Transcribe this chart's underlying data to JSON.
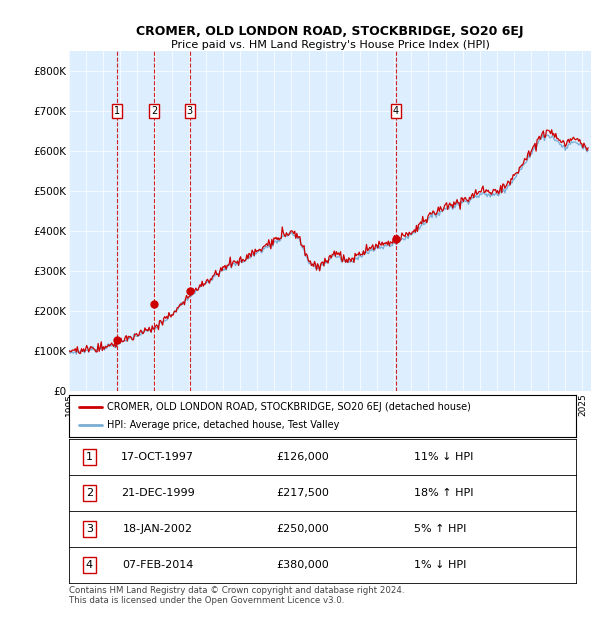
{
  "title": "CROMER, OLD LONDON ROAD, STOCKBRIDGE, SO20 6EJ",
  "subtitle": "Price paid vs. HM Land Registry's House Price Index (HPI)",
  "legend_line1": "CROMER, OLD LONDON ROAD, STOCKBRIDGE, SO20 6EJ (detached house)",
  "legend_line2": "HPI: Average price, detached house, Test Valley",
  "footnote": "Contains HM Land Registry data © Crown copyright and database right 2024.\nThis data is licensed under the Open Government Licence v3.0.",
  "transactions": [
    {
      "num": 1,
      "date": "17-OCT-1997",
      "price": 126000,
      "pct": "11%",
      "dir": "↓",
      "year_x": 1997.79
    },
    {
      "num": 2,
      "date": "21-DEC-1999",
      "price": 217500,
      "pct": "18%",
      "dir": "↑",
      "year_x": 1999.97
    },
    {
      "num": 3,
      "date": "18-JAN-2002",
      "price": 250000,
      "pct": "5%",
      "dir": "↑",
      "year_x": 2002.05
    },
    {
      "num": 4,
      "date": "07-FEB-2014",
      "price": 380000,
      "pct": "1%",
      "dir": "↓",
      "year_x": 2014.1
    }
  ],
  "hpi_color": "#7aadd4",
  "price_color": "#cc0000",
  "marker_color": "#cc0000",
  "vline_color": "#cc0000",
  "bg_color": "#ddeeff",
  "plot_bg": "#ffffff",
  "ylim": [
    0,
    850000
  ],
  "yticks": [
    0,
    100000,
    200000,
    300000,
    400000,
    500000,
    600000,
    700000,
    800000
  ],
  "ytick_labels": [
    "£0",
    "£100K",
    "£200K",
    "£300K",
    "£400K",
    "£500K",
    "£600K",
    "£700K",
    "£800K"
  ],
  "xmin": 1995.0,
  "xmax": 2025.5,
  "keypoints": [
    [
      1995.0,
      95000
    ],
    [
      1996.0,
      100000
    ],
    [
      1997.0,
      108000
    ],
    [
      1997.8,
      115000
    ],
    [
      1998.5,
      130000
    ],
    [
      1999.0,
      140000
    ],
    [
      1999.97,
      155000
    ],
    [
      2000.5,
      170000
    ],
    [
      2001.0,
      190000
    ],
    [
      2002.05,
      235000
    ],
    [
      2003.0,
      270000
    ],
    [
      2004.0,
      305000
    ],
    [
      2005.0,
      320000
    ],
    [
      2006.0,
      345000
    ],
    [
      2007.0,
      370000
    ],
    [
      2007.5,
      385000
    ],
    [
      2008.0,
      395000
    ],
    [
      2008.5,
      375000
    ],
    [
      2009.0,
      320000
    ],
    [
      2009.5,
      305000
    ],
    [
      2010.0,
      320000
    ],
    [
      2010.5,
      340000
    ],
    [
      2011.0,
      325000
    ],
    [
      2011.5,
      320000
    ],
    [
      2012.0,
      340000
    ],
    [
      2013.0,
      355000
    ],
    [
      2014.1,
      370000
    ],
    [
      2015.0,
      390000
    ],
    [
      2016.0,
      430000
    ],
    [
      2017.0,
      455000
    ],
    [
      2018.0,
      470000
    ],
    [
      2019.0,
      490000
    ],
    [
      2020.0,
      490000
    ],
    [
      2020.5,
      505000
    ],
    [
      2021.0,
      530000
    ],
    [
      2021.5,
      560000
    ],
    [
      2022.0,
      590000
    ],
    [
      2022.5,
      630000
    ],
    [
      2023.0,
      640000
    ],
    [
      2023.5,
      625000
    ],
    [
      2024.0,
      605000
    ],
    [
      2024.5,
      625000
    ],
    [
      2025.0,
      610000
    ],
    [
      2025.33,
      600000
    ]
  ]
}
